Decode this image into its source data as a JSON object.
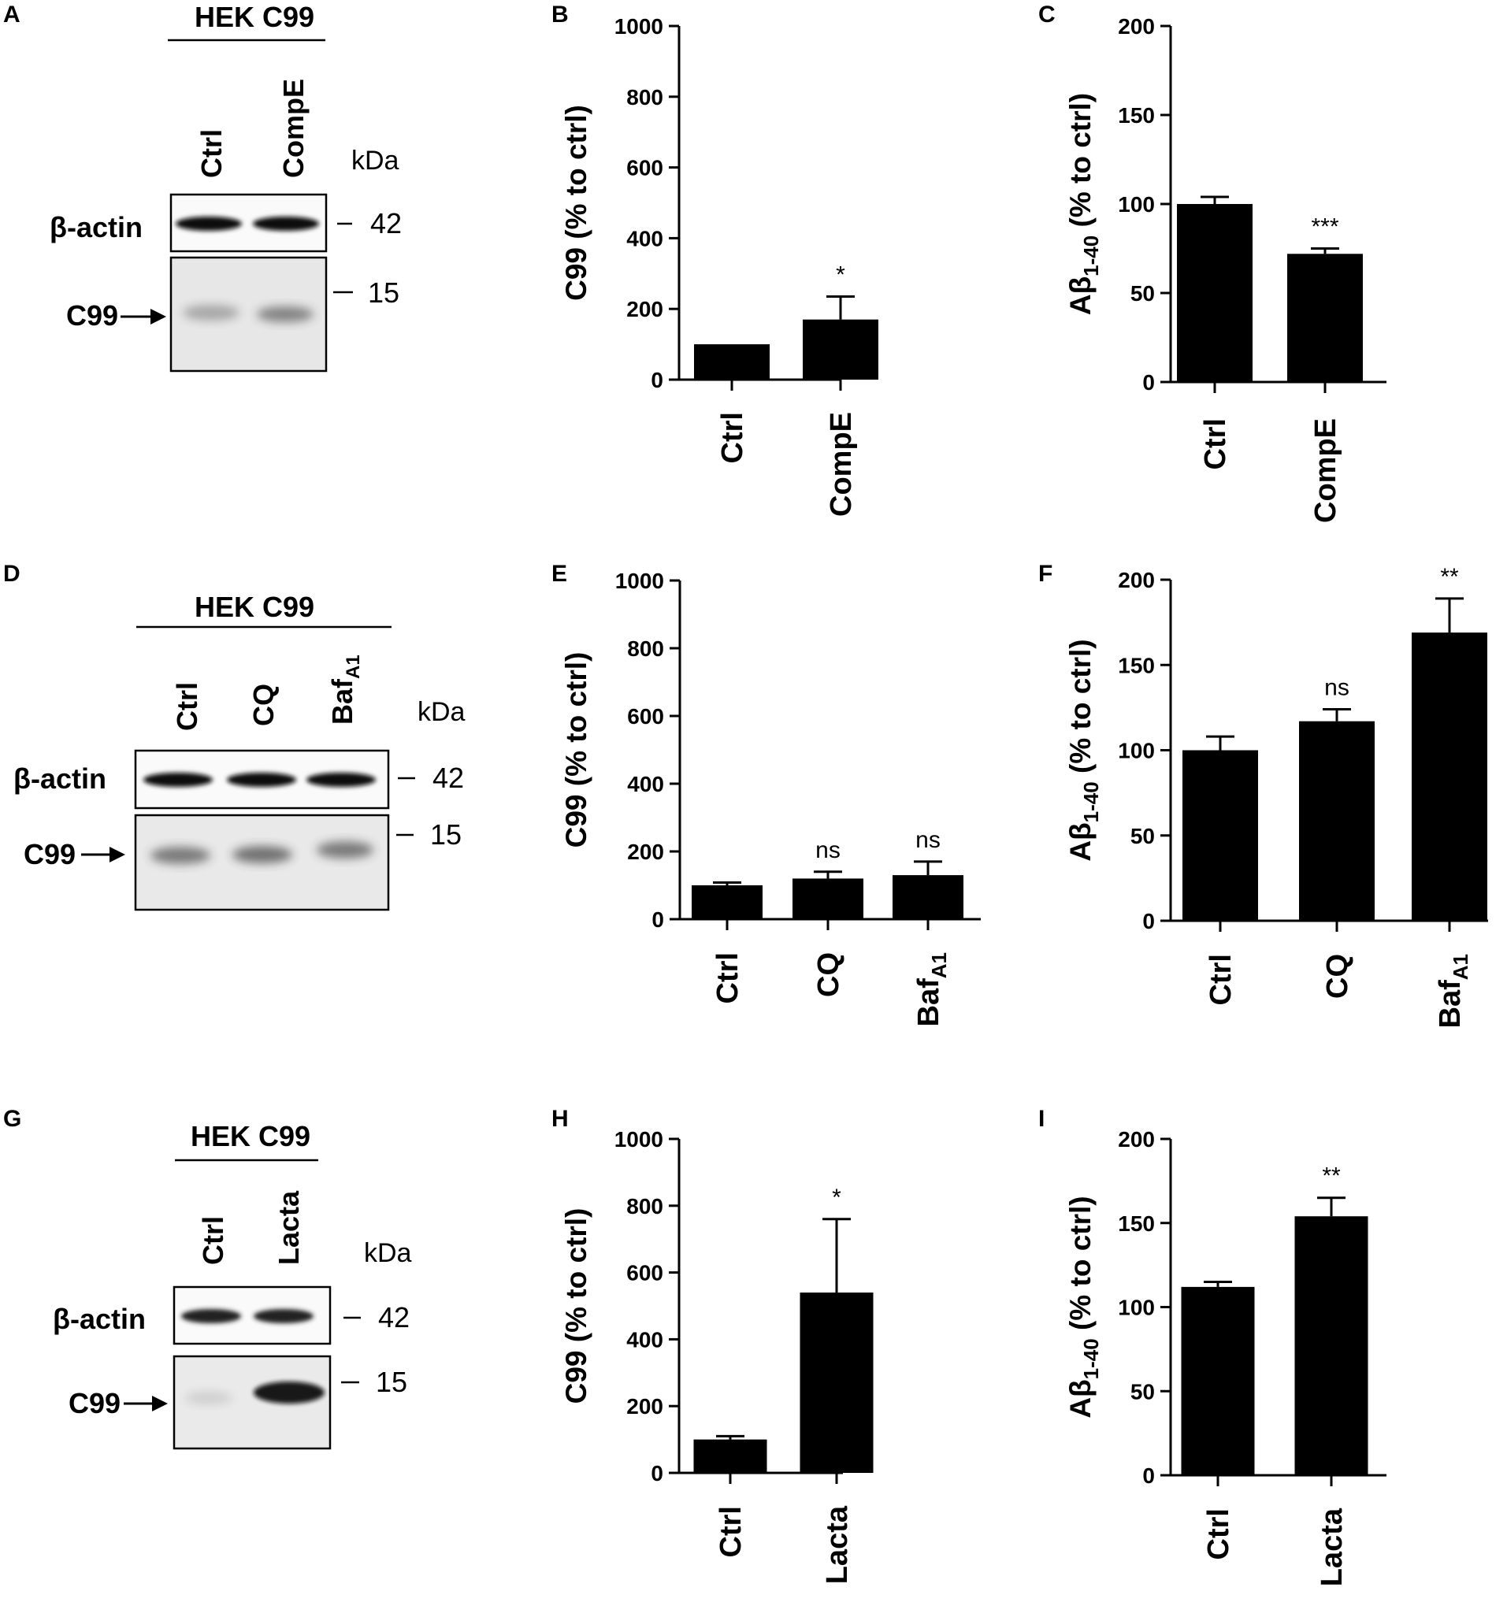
{
  "panel_labels": [
    "A",
    "B",
    "C",
    "D",
    "E",
    "F",
    "G",
    "H",
    "I"
  ],
  "blots": [
    {
      "title": "HEK C99",
      "lanes": [
        "Ctrl",
        "CompE"
      ],
      "kda_label": "kDa",
      "rows": [
        "β-actin",
        "C99"
      ],
      "markers": [
        "42",
        "15"
      ],
      "c99_intensity": [
        0.35,
        0.55
      ]
    },
    {
      "title": "HEK C99",
      "lanes": [
        "Ctrl",
        "CQ",
        "Baf"
      ],
      "lane_subscripts": [
        "",
        "",
        "A1"
      ],
      "kda_label": "kDa",
      "rows": [
        "β-actin",
        "C99"
      ],
      "markers": [
        "42",
        "15"
      ],
      "c99_intensity": [
        0.6,
        0.65,
        0.6
      ]
    },
    {
      "title": "HEK C99",
      "lanes": [
        "Ctrl",
        "Lacta"
      ],
      "kda_label": "kDa",
      "rows": [
        "β-actin",
        "C99"
      ],
      "markers": [
        "42",
        "15"
      ],
      "c99_intensity": [
        0.15,
        0.95
      ]
    }
  ],
  "chart_data": [
    {
      "panel": "B",
      "type": "bar",
      "categories": [
        "Ctrl",
        "CompE"
      ],
      "cat_subscripts": [
        "",
        ""
      ],
      "values": [
        100,
        170
      ],
      "errors": [
        0,
        65
      ],
      "significance": [
        "",
        "*"
      ],
      "ylabel": "C99 (% to ctrl)",
      "ylim": [
        0,
        1000
      ],
      "yticks": [
        0,
        200,
        400,
        600,
        800,
        1000
      ]
    },
    {
      "panel": "C",
      "type": "bar",
      "categories": [
        "Ctrl",
        "CompE"
      ],
      "cat_subscripts": [
        "",
        ""
      ],
      "values": [
        100,
        72
      ],
      "errors": [
        4,
        3
      ],
      "significance": [
        "",
        "***"
      ],
      "ylabel_main": "Aβ",
      "ylabel_sub": "1-40",
      "ylabel_rest": " (% to ctrl)",
      "ylim": [
        0,
        200
      ],
      "yticks": [
        0,
        50,
        100,
        150,
        200
      ]
    },
    {
      "panel": "E",
      "type": "bar",
      "categories": [
        "Ctrl",
        "CQ",
        "Baf"
      ],
      "cat_subscripts": [
        "",
        "",
        "A1"
      ],
      "values": [
        100,
        120,
        130
      ],
      "errors": [
        8,
        20,
        40
      ],
      "significance": [
        "",
        "ns",
        "ns"
      ],
      "ylabel": "C99 (% to ctrl)",
      "ylim": [
        0,
        1000
      ],
      "yticks": [
        0,
        200,
        400,
        600,
        800,
        1000
      ]
    },
    {
      "panel": "F",
      "type": "bar",
      "categories": [
        "Ctrl",
        "CQ",
        "Baf"
      ],
      "cat_subscripts": [
        "",
        "",
        "A1"
      ],
      "values": [
        100,
        117,
        169
      ],
      "errors": [
        8,
        7,
        20
      ],
      "significance": [
        "",
        "ns",
        "**"
      ],
      "ylabel_main": "Aβ",
      "ylabel_sub": "1-40",
      "ylabel_rest": " (% to ctrl)",
      "ylim": [
        0,
        200
      ],
      "yticks": [
        0,
        50,
        100,
        150,
        200
      ]
    },
    {
      "panel": "H",
      "type": "bar",
      "categories": [
        "Ctrl",
        "Lacta"
      ],
      "cat_subscripts": [
        "",
        ""
      ],
      "values": [
        100,
        540
      ],
      "errors": [
        10,
        220
      ],
      "significance": [
        "",
        "*"
      ],
      "ylabel": "C99 (% to ctrl)",
      "ylim": [
        0,
        1000
      ],
      "yticks": [
        0,
        200,
        400,
        600,
        800,
        1000
      ]
    },
    {
      "panel": "I",
      "type": "bar",
      "categories": [
        "Ctrl",
        "Lacta"
      ],
      "cat_subscripts": [
        "",
        ""
      ],
      "values": [
        112,
        154
      ],
      "errors": [
        3,
        11
      ],
      "significance": [
        "",
        "**"
      ],
      "ylabel_main": "Aβ",
      "ylabel_sub": "1-40",
      "ylabel_rest": " (% to ctrl)",
      "ylim": [
        0,
        200
      ],
      "yticks": [
        0,
        50,
        100,
        150,
        200
      ]
    }
  ]
}
